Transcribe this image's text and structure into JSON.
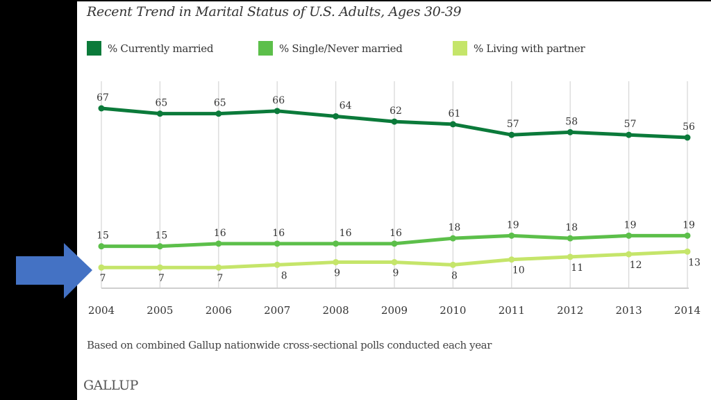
{
  "chart_data": {
    "type": "line",
    "title": "Recent Trend in Marital Status of U.S. Adults, Ages 30-39",
    "xlabel": "",
    "ylabel": "",
    "x": [
      "2004",
      "2005",
      "2006",
      "2007",
      "2008",
      "2009",
      "2010",
      "2011",
      "2012",
      "2013",
      "2014"
    ],
    "series": [
      {
        "name": "% Currently married",
        "color": "#0b7a3a",
        "values": [
          67,
          65,
          65,
          66,
          64,
          62,
          61,
          57,
          58,
          57,
          56
        ],
        "label_position": "above"
      },
      {
        "name": "% Single/Never married",
        "color": "#5cbf4a",
        "values": [
          15,
          15,
          16,
          16,
          16,
          16,
          18,
          19,
          18,
          19,
          19
        ],
        "label_position": "above"
      },
      {
        "name": "% Living with partner",
        "color": "#c5e56a",
        "values": [
          7,
          7,
          7,
          8,
          9,
          9,
          8,
          10,
          11,
          12,
          13
        ],
        "label_position": "below"
      }
    ],
    "ylim": [
      0,
      70
    ],
    "grid": "vertical",
    "legend": "top",
    "footnote": "Based on combined Gallup nationwide cross-sectional polls conducted each year",
    "source": "GALLUP"
  },
  "annotation": {
    "arrow": {
      "direction": "right",
      "color": "#4472c4",
      "points_to": "% Living with partner"
    }
  }
}
